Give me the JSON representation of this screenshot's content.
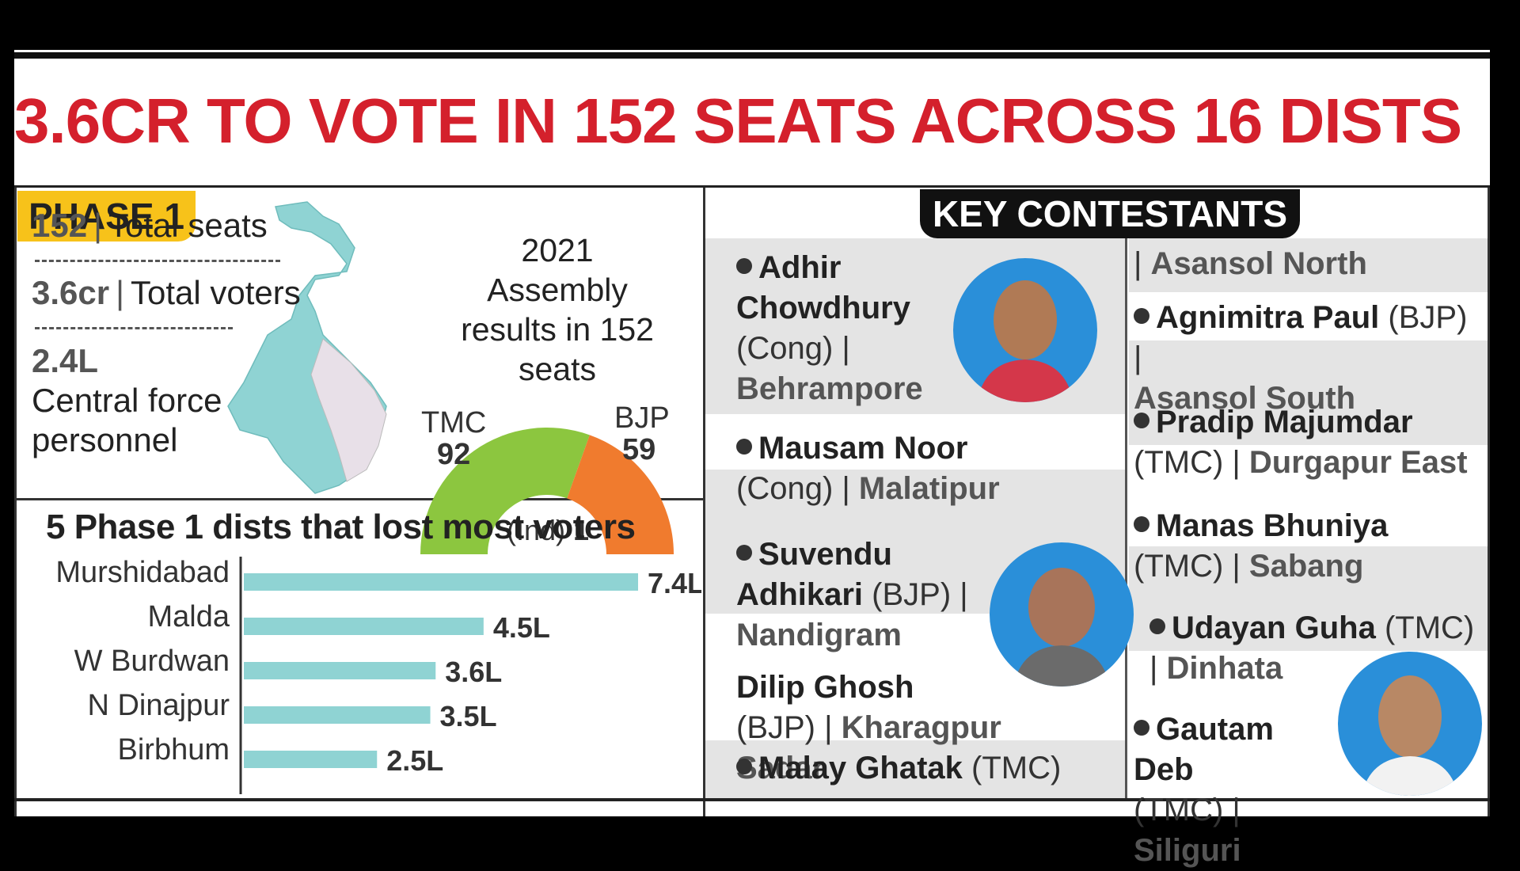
{
  "headline": "3.6CR TO VOTE IN 152 SEATS ACROSS 16 DISTS",
  "phase": {
    "badge": "PHASE 1",
    "stats": [
      {
        "value": "152",
        "label": "Total seats"
      },
      {
        "value": "3.6cr",
        "label": "Total voters"
      },
      {
        "value": "2.4L",
        "label": "Central force personnel"
      }
    ]
  },
  "gauge": {
    "caption": "2021 Assembly results in 152 seats",
    "parties": [
      {
        "name": "TMC",
        "seats": 92,
        "color": "#8cc63f"
      },
      {
        "name": "BJP",
        "seats": 59,
        "color": "#f07b2e"
      }
    ],
    "ind_label": "(Ind)",
    "ind_seats": "1"
  },
  "chart_data": {
    "type": "bar",
    "title": "5 Phase 1 dists that lost most voters",
    "categories": [
      "Murshidabad",
      "Malda",
      "W Burdwan",
      "N Dinajpur",
      "Birbhum"
    ],
    "values": [
      7.4,
      4.5,
      3.6,
      3.5,
      2.5
    ],
    "value_labels": [
      "7.4L",
      "4.5L",
      "3.6L",
      "3.5L",
      "2.5L"
    ],
    "unit": "L",
    "color": "#8fd3d3"
  },
  "key_contestants": {
    "title": "KEY CONTESTANTS",
    "left": [
      {
        "name": "Adhir Chowdhury",
        "party": "(Cong)",
        "seat": "Behrampore"
      },
      {
        "name": "Mausam Noor",
        "party": "(Cong)",
        "seat": "Malatipur"
      },
      {
        "name": "Suvendu Adhikari",
        "party": "(BJP)",
        "seat": "Nandigram"
      },
      {
        "name": "Dilip Ghosh",
        "party": "(BJP)",
        "seat": "Kharagpur Sadar"
      },
      {
        "name": "Malay Ghatak",
        "party": "(TMC)",
        "seat": ""
      }
    ],
    "right": [
      {
        "name": "",
        "party": "",
        "seat": "Asansol North"
      },
      {
        "name": "Agnimitra Paul",
        "party": "(BJP)",
        "seat": "Asansol South"
      },
      {
        "name": "Pradip Majumdar",
        "party": "(TMC)",
        "seat": "Durgapur East"
      },
      {
        "name": "Manas Bhuniya",
        "party": "(TMC)",
        "seat": "Sabang"
      },
      {
        "name": "Udayan Guha",
        "party": "(TMC)",
        "seat": "Dinhata"
      },
      {
        "name": "Gautam Deb",
        "party": "(TMC)",
        "seat": "Siliguri"
      }
    ]
  },
  "colors": {
    "headline": "#d4202c",
    "badge": "#f7c21a",
    "map": "#8fd3d3",
    "photo_bg": "#2a8fd9"
  }
}
